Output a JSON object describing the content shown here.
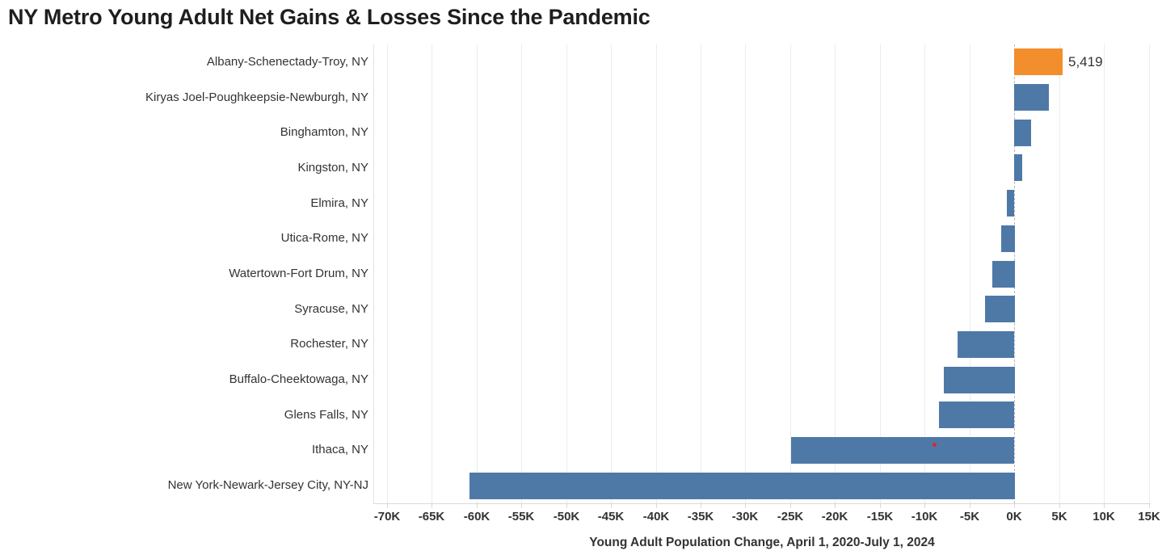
{
  "page": {
    "title": "NY Metro Young Adult Net Gains & Losses Since the Pandemic"
  },
  "chart_data": {
    "type": "bar",
    "orientation": "horizontal",
    "title": "NY Metro Young Adult Net Gains & Losses Since the Pandemic",
    "xlabel": "Young Adult Population Change, April 1, 2020-July 1, 2024",
    "ylabel": "",
    "xlim": [
      -71500,
      15200
    ],
    "grid": "vertical",
    "zero_line": "dashed",
    "legend": "none",
    "categories": [
      "Albany-Schenectady-Troy, NY",
      "Kiryas Joel-Poughkeepsie-Newburgh, NY",
      "Binghamton, NY",
      "Kingston, NY",
      "Elmira, NY",
      "Utica-Rome, NY",
      "Watertown-Fort Drum, NY",
      "Syracuse, NY",
      "Rochester, NY",
      "Buffalo-Cheektowaga, NY",
      "Glens Falls, NY",
      "Ithaca, NY",
      "New York-Newark-Jersey City, NY-NJ"
    ],
    "values": [
      5419,
      3900,
      1900,
      900,
      -800,
      -1500,
      -2500,
      -3300,
      -6300,
      -7900,
      -8400,
      -24900,
      -60800
    ],
    "data_labels": [
      "5,419",
      "",
      "",
      "",
      "",
      "",
      "",
      "",
      "",
      "",
      "",
      "",
      ""
    ],
    "bar_colors": [
      "#f28e2b",
      "#4e79a7",
      "#4e79a7",
      "#4e79a7",
      "#4e79a7",
      "#4e79a7",
      "#4e79a7",
      "#4e79a7",
      "#4e79a7",
      "#4e79a7",
      "#4e79a7",
      "#4e79a7",
      "#4e79a7"
    ],
    "x_tick_labels": [
      "-70K",
      "-65K",
      "-60K",
      "-55K",
      "-50K",
      "-45K",
      "-40K",
      "-35K",
      "-30K",
      "-25K",
      "-20K",
      "-15K",
      "-10K",
      "-5K",
      "0K",
      "5K",
      "10K",
      "15K"
    ],
    "x_tick_values": [
      -70000,
      -65000,
      -60000,
      -55000,
      -50000,
      -45000,
      -40000,
      -35000,
      -30000,
      -25000,
      -20000,
      -15000,
      -10000,
      -5000,
      0,
      5000,
      10000,
      15000
    ],
    "annotation_dot": {
      "category": "Ithaca, NY",
      "value": -8900,
      "color": "#e1242b"
    }
  },
  "colors": {
    "bar_blue": "#4e79a7",
    "bar_orange": "#f28e2b",
    "grid": "#ececec",
    "axis": "#d9d9d9",
    "zero_line": "#b9b9b9",
    "text": "#333333",
    "title_text": "#1e1e1e",
    "dot_red": "#e1242b",
    "background": "#ffffff"
  }
}
